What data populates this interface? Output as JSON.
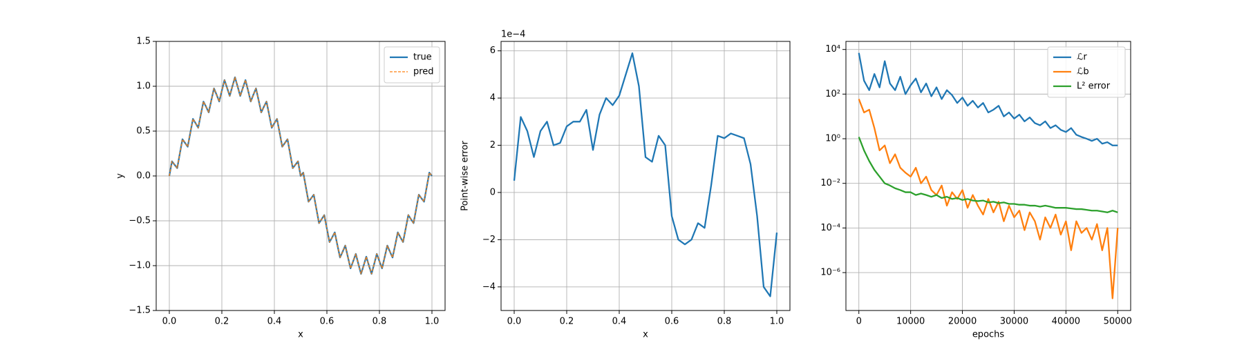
{
  "chart_data": [
    {
      "type": "line",
      "xlabel": "x",
      "ylabel": "y",
      "x": [
        0,
        0.01,
        0.02,
        0.03,
        0.04,
        0.05,
        0.06,
        0.07,
        0.08,
        0.09,
        0.1,
        0.11,
        0.12,
        0.13,
        0.14,
        0.15,
        0.16,
        0.17,
        0.18,
        0.19,
        0.2,
        0.21,
        0.22,
        0.23,
        0.24,
        0.25,
        0.26,
        0.27,
        0.28,
        0.29,
        0.3,
        0.31,
        0.32,
        0.33,
        0.34,
        0.35,
        0.36,
        0.37,
        0.38,
        0.39,
        0.4,
        0.41,
        0.42,
        0.43,
        0.44,
        0.45,
        0.46,
        0.47,
        0.48,
        0.49,
        0.5,
        0.51,
        0.52,
        0.53,
        0.54,
        0.55,
        0.56,
        0.57,
        0.58,
        0.59,
        0.6,
        0.61,
        0.62,
        0.63,
        0.64,
        0.65,
        0.66,
        0.67,
        0.68,
        0.69,
        0.7,
        0.71,
        0.72,
        0.73,
        0.74,
        0.75,
        0.76,
        0.77,
        0.78,
        0.79,
        0.8,
        0.81,
        0.82,
        0.83,
        0.84,
        0.85,
        0.86,
        0.87,
        0.88,
        0.89,
        0.9,
        0.91,
        0.92,
        0.93,
        0.94,
        0.95,
        0.96,
        0.97,
        0.98,
        0.99,
        1
      ],
      "series": [
        {
          "name": "true",
          "color": "#1f77b4",
          "linestyle": "solid",
          "values": [
            0,
            0.163,
            0.125,
            0.087,
            0.249,
            0.409,
            0.368,
            0.326,
            0.482,
            0.636,
            0.588,
            0.537,
            0.685,
            0.829,
            0.771,
            0.709,
            0.844,
            0.976,
            0.905,
            0.83,
            0.951,
            1.069,
            0.982,
            0.892,
            0.998,
            1.1,
            0.998,
            0.892,
            0.982,
            1.069,
            0.951,
            0.83,
            0.905,
            0.976,
            0.844,
            0.709,
            0.771,
            0.829,
            0.685,
            0.537,
            0.588,
            0.636,
            0.482,
            0.326,
            0.368,
            0.409,
            0.249,
            0.087,
            0.125,
            0.163,
            0,
            0.037,
            -0.125,
            -0.287,
            -0.249,
            -0.209,
            -0.368,
            -0.526,
            -0.482,
            -0.436,
            -0.588,
            -0.737,
            -0.685,
            -0.629,
            -0.771,
            -0.909,
            -0.844,
            -0.776,
            -0.905,
            -1.03,
            -0.951,
            -0.869,
            -0.982,
            -1.092,
            -0.998,
            -0.9,
            -0.998,
            -1.092,
            -0.982,
            -0.869,
            -0.951,
            -1.03,
            -0.905,
            -0.776,
            -0.844,
            -0.909,
            -0.771,
            -0.629,
            -0.685,
            -0.737,
            -0.588,
            -0.436,
            -0.482,
            -0.526,
            -0.368,
            -0.209,
            -0.249,
            -0.287,
            -0.125,
            0.037,
            0
          ]
        },
        {
          "name": "pred",
          "color": "#ff7f0e",
          "linestyle": "dashed",
          "values": [
            0,
            0.163,
            0.125,
            0.087,
            0.249,
            0.409,
            0.368,
            0.326,
            0.482,
            0.636,
            0.588,
            0.537,
            0.685,
            0.829,
            0.771,
            0.709,
            0.844,
            0.976,
            0.905,
            0.83,
            0.951,
            1.069,
            0.982,
            0.892,
            0.998,
            1.1,
            0.998,
            0.892,
            0.982,
            1.069,
            0.951,
            0.83,
            0.905,
            0.976,
            0.844,
            0.709,
            0.771,
            0.829,
            0.685,
            0.537,
            0.588,
            0.636,
            0.482,
            0.326,
            0.368,
            0.409,
            0.249,
            0.087,
            0.125,
            0.163,
            0,
            0.037,
            -0.125,
            -0.287,
            -0.249,
            -0.209,
            -0.368,
            -0.526,
            -0.482,
            -0.436,
            -0.588,
            -0.737,
            -0.685,
            -0.629,
            -0.771,
            -0.909,
            -0.844,
            -0.776,
            -0.905,
            -1.03,
            -0.951,
            -0.869,
            -0.982,
            -1.092,
            -0.998,
            -0.9,
            -0.998,
            -1.092,
            -0.982,
            -0.869,
            -0.951,
            -1.03,
            -0.905,
            -0.776,
            -0.844,
            -0.909,
            -0.771,
            -0.629,
            -0.685,
            -0.737,
            -0.588,
            -0.436,
            -0.482,
            -0.526,
            -0.368,
            -0.209,
            -0.249,
            -0.287,
            -0.125,
            0.037,
            0
          ]
        }
      ],
      "xlim": [
        -0.05,
        1.05
      ],
      "ylim": [
        -1.5,
        1.5
      ],
      "xticks": [
        {
          "value": 0,
          "label": "0.0"
        },
        0.2,
        0.4,
        0.6,
        0.8,
        {
          "value": 1,
          "label": "1.0"
        }
      ],
      "yticks": [
        {
          "value": -1.5,
          "label": "−1.5"
        },
        {
          "value": -1,
          "label": "−1.0"
        },
        {
          "value": -0.5,
          "label": "−0.5"
        },
        {
          "value": 0,
          "label": "0.0"
        },
        0.5,
        {
          "value": 1,
          "label": "1.0"
        },
        1.5
      ],
      "grid": true,
      "legend": "upper right"
    },
    {
      "type": "line",
      "xlabel": "x",
      "ylabel": "Point-wise error",
      "offset_label": "1e−4",
      "x": [
        0,
        0.025,
        0.05,
        0.075,
        0.1,
        0.125,
        0.15,
        0.175,
        0.2,
        0.225,
        0.25,
        0.275,
        0.3,
        0.325,
        0.35,
        0.375,
        0.4,
        0.425,
        0.45,
        0.475,
        0.5,
        0.525,
        0.55,
        0.575,
        0.6,
        0.625,
        0.65,
        0.675,
        0.7,
        0.725,
        0.75,
        0.775,
        0.8,
        0.825,
        0.85,
        0.875,
        0.9,
        0.925,
        0.95,
        0.975,
        1
      ],
      "series": [
        {
          "color": "#1f77b4",
          "linestyle": "solid",
          "values": [
            0.5,
            3.2,
            2.6,
            1.5,
            2.6,
            3.0,
            2.0,
            2.1,
            2.8,
            3.0,
            3.0,
            3.5,
            1.8,
            3.3,
            4.0,
            3.7,
            4.1,
            5.0,
            5.9,
            4.5,
            1.5,
            1.3,
            2.4,
            2.0,
            -1.0,
            -2.0,
            -2.2,
            -2.0,
            -1.3,
            -1.5,
            0.3,
            2.4,
            2.3,
            2.5,
            2.4,
            2.3,
            1.2,
            -1.0,
            -4.0,
            -4.4,
            -1.7
          ]
        }
      ],
      "xlim": [
        -0.05,
        1.05
      ],
      "ylim": [
        -5.0,
        6.4
      ],
      "xticks": [
        {
          "value": 0,
          "label": "0.0"
        },
        0.2,
        0.4,
        0.6,
        0.8,
        {
          "value": 1,
          "label": "1.0"
        }
      ],
      "yticks": [
        {
          "value": -4,
          "label": "−4"
        },
        {
          "value": -2,
          "label": "−2"
        },
        0,
        2,
        4,
        6
      ],
      "grid": true
    },
    {
      "type": "line",
      "xlabel": "epochs",
      "log_y": true,
      "x": [
        0,
        1000,
        2000,
        3000,
        4000,
        5000,
        6000,
        7000,
        8000,
        9000,
        10000,
        11000,
        12000,
        13000,
        14000,
        15000,
        16000,
        17000,
        18000,
        19000,
        20000,
        21000,
        22000,
        23000,
        24000,
        25000,
        26000,
        27000,
        28000,
        29000,
        30000,
        31000,
        32000,
        33000,
        34000,
        35000,
        36000,
        37000,
        38000,
        39000,
        40000,
        41000,
        42000,
        43000,
        44000,
        45000,
        46000,
        47000,
        48000,
        49000,
        50000
      ],
      "series": [
        {
          "name": "ℒr",
          "color": "#1f77b4",
          "linestyle": "solid",
          "values": [
            7000,
            400,
            150,
            800,
            200,
            3000,
            300,
            150,
            600,
            100,
            250,
            500,
            120,
            300,
            80,
            200,
            60,
            150,
            90,
            40,
            70,
            30,
            50,
            25,
            40,
            15,
            20,
            30,
            10,
            15,
            8,
            12,
            6,
            9,
            5,
            4,
            6,
            3,
            4,
            2.5,
            2,
            3,
            1.5,
            1.2,
            1,
            0.8,
            1,
            0.6,
            0.7,
            0.5,
            0.5
          ]
        },
        {
          "name": "ℒb",
          "color": "#ff7f0e",
          "linestyle": "solid",
          "values": [
            60,
            15,
            20,
            3,
            0.3,
            0.5,
            0.08,
            0.2,
            0.05,
            0.03,
            0.02,
            0.05,
            0.01,
            0.02,
            0.005,
            0.003,
            0.008,
            0.001,
            0.004,
            0.002,
            0.005,
            0.0008,
            0.003,
            0.001,
            0.0004,
            0.002,
            0.0005,
            0.0015,
            0.0002,
            0.001,
            0.0003,
            0.0006,
            8e-05,
            0.0005,
            0.0002,
            3e-05,
            0.0003,
            0.0001,
            0.0004,
            5e-05,
            0.0002,
            1e-05,
            0.0002,
            6e-05,
            0.0001,
            3e-05,
            0.00015,
            1e-05,
            0.0001,
            7e-08,
            0.0001
          ]
        },
        {
          "name": "L² error",
          "color": "#2ca02c",
          "linestyle": "solid",
          "values": [
            1.2,
            0.3,
            0.1,
            0.04,
            0.02,
            0.01,
            0.008,
            0.006,
            0.005,
            0.004,
            0.004,
            0.003,
            0.0035,
            0.003,
            0.0025,
            0.003,
            0.0022,
            0.0025,
            0.002,
            0.0022,
            0.0018,
            0.002,
            0.0017,
            0.0016,
            0.0017,
            0.0014,
            0.0015,
            0.0013,
            0.0014,
            0.0012,
            0.0012,
            0.0011,
            0.0011,
            0.001,
            0.001,
            0.0009,
            0.001,
            0.0009,
            0.0008,
            0.0008,
            0.0008,
            0.00075,
            0.0007,
            0.0007,
            0.00065,
            0.0006,
            0.0006,
            0.00055,
            0.0005,
            0.0006,
            0.0005
          ]
        }
      ],
      "xlim": [
        -2500,
        52500
      ],
      "ylim": [
        2e-08,
        23000
      ],
      "xticks": [
        0,
        10000,
        20000,
        30000,
        40000,
        50000
      ],
      "yticks": [
        {
          "value": 1e-06,
          "label": "10⁻⁶"
        },
        {
          "value": 0.0001,
          "label": "10⁻⁴"
        },
        {
          "value": 0.01,
          "label": "10⁻²"
        },
        {
          "value": 1,
          "label": "10⁰"
        },
        {
          "value": 100,
          "label": "10²"
        },
        {
          "value": 10000,
          "label": "10⁴"
        }
      ],
      "grid": true,
      "legend": "upper right"
    }
  ]
}
